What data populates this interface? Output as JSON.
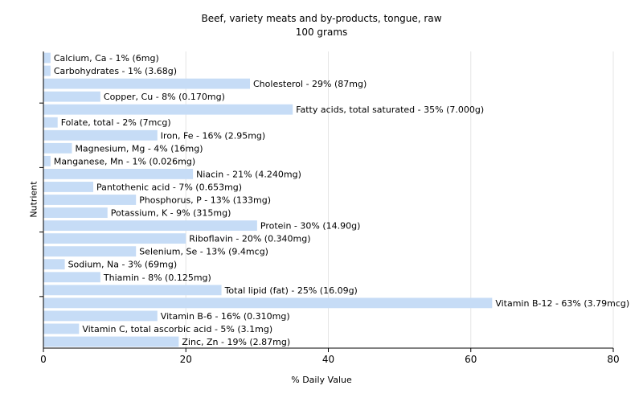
{
  "chart_data": {
    "type": "bar",
    "orientation": "horizontal",
    "title": "Beef, variety meats and by-products, tongue, raw",
    "subtitle": "100 grams",
    "xlabel": "% Daily Value",
    "ylabel": "Nutrient",
    "xlim": [
      0,
      80
    ],
    "xticks": [
      0,
      20,
      40,
      60,
      80
    ],
    "grid": true,
    "bar_color": "#c6dcf6",
    "categories": [
      "Calcium, Ca",
      "Carbohydrates",
      "Cholesterol",
      "Copper, Cu",
      "Fatty acids, total saturated",
      "Folate, total",
      "Iron, Fe",
      "Magnesium, Mg",
      "Manganese, Mn",
      "Niacin",
      "Pantothenic acid",
      "Phosphorus, P",
      "Potassium, K",
      "Protein",
      "Riboflavin",
      "Selenium, Se",
      "Sodium, Na",
      "Thiamin",
      "Total lipid (fat)",
      "Vitamin B-12",
      "Vitamin B-6",
      "Vitamin C, total ascorbic acid",
      "Zinc, Zn"
    ],
    "values": [
      1,
      1,
      29,
      8,
      35,
      2,
      16,
      4,
      1,
      21,
      7,
      13,
      9,
      30,
      20,
      13,
      3,
      8,
      25,
      63,
      16,
      5,
      19
    ],
    "labels": [
      "Calcium, Ca - 1% (6mg)",
      "Carbohydrates - 1% (3.68g)",
      "Cholesterol - 29% (87mg)",
      "Copper, Cu - 8% (0.170mg)",
      "Fatty acids, total saturated - 35% (7.000g)",
      "Folate, total - 2% (7mcg)",
      "Iron, Fe - 16% (2.95mg)",
      "Magnesium, Mg - 4% (16mg)",
      "Manganese, Mn - 1% (0.026mg)",
      "Niacin - 21% (4.240mg)",
      "Pantothenic acid - 7% (0.653mg)",
      "Phosphorus, P - 13% (133mg)",
      "Potassium, K - 9% (315mg)",
      "Protein - 30% (14.90g)",
      "Riboflavin - 20% (0.340mg)",
      "Selenium, Se - 13% (9.4mcg)",
      "Sodium, Na - 3% (69mg)",
      "Thiamin - 8% (0.125mg)",
      "Total lipid (fat) - 25% (16.09g)",
      "Vitamin B-12 - 63% (3.79mcg)",
      "Vitamin B-6 - 16% (0.310mg)",
      "Vitamin C, total ascorbic acid - 5% (3.1mg)",
      "Zinc, Zn - 19% (2.87mg)"
    ]
  }
}
